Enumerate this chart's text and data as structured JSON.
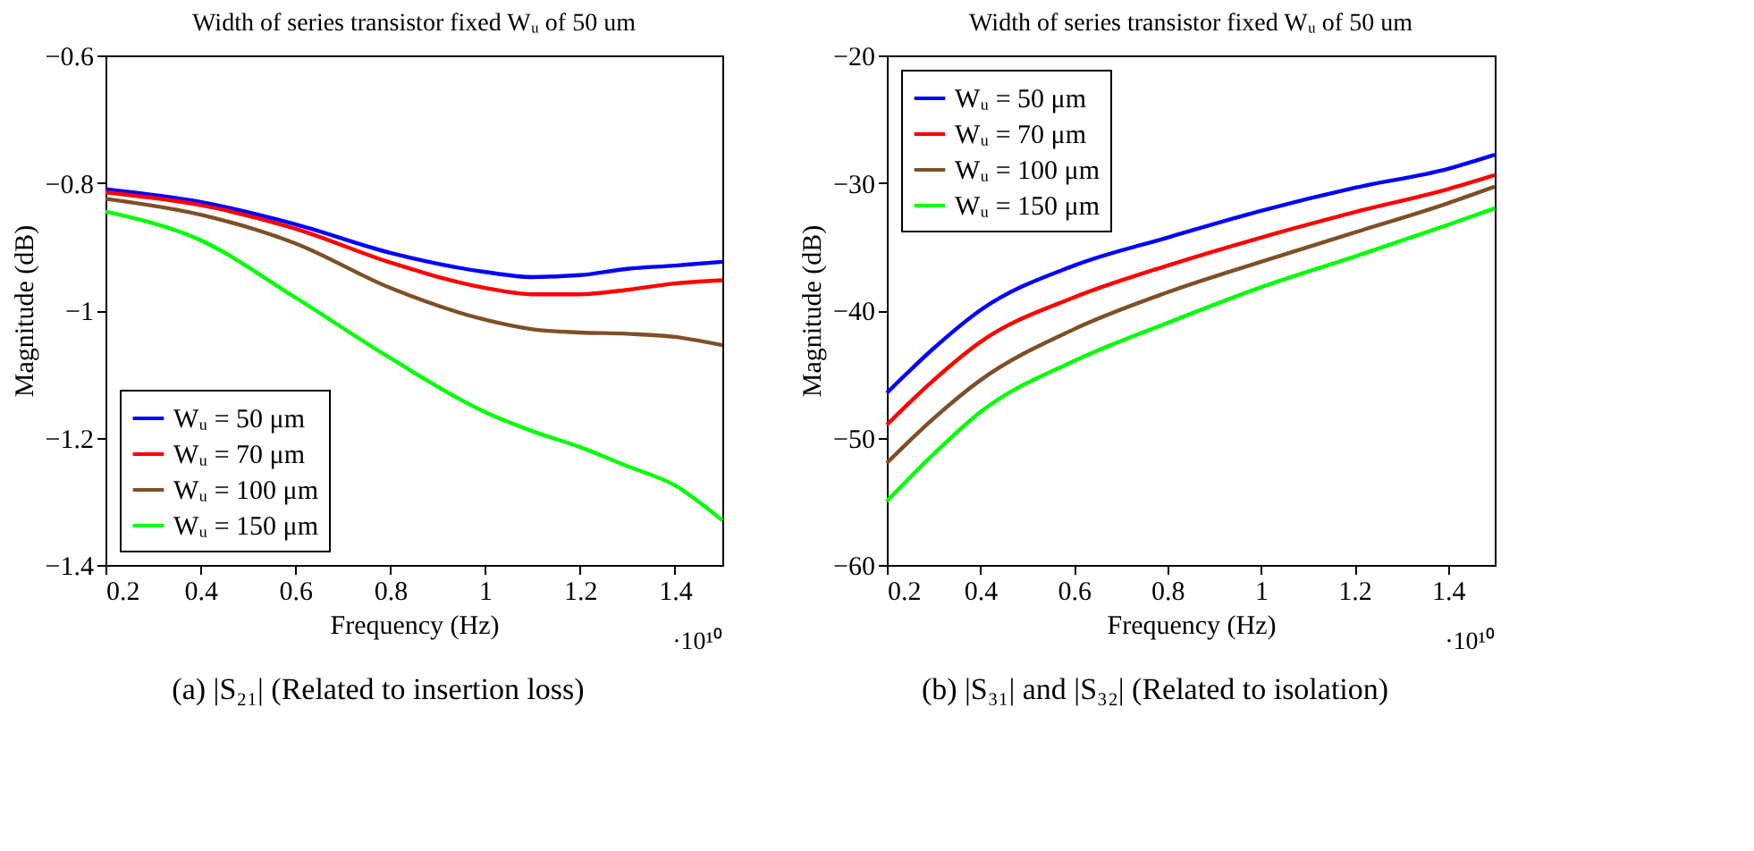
{
  "chart_data": [
    {
      "type": "line",
      "title": "Width of series transistor fixed Wᵤ of 50 um",
      "xlabel": "Frequency (Hz)",
      "ylabel": "Magnitude (dB)",
      "x": [
        0.2,
        0.4,
        0.6,
        0.8,
        1.0,
        1.1,
        1.2,
        1.3,
        1.4,
        1.5
      ],
      "series": [
        {
          "name": "Wᵤ = 50 μm",
          "color": "#0000ff",
          "values": [
            -0.81,
            -0.83,
            -0.865,
            -0.91,
            -0.94,
            -0.948,
            -0.945,
            -0.935,
            -0.93,
            -0.924
          ]
        },
        {
          "name": "Wᵤ = 70 μm",
          "color": "#ff0000",
          "values": [
            -0.815,
            -0.835,
            -0.872,
            -0.925,
            -0.965,
            -0.975,
            -0.975,
            -0.968,
            -0.958,
            -0.953
          ]
        },
        {
          "name": "Wᵤ = 100 μm",
          "color": "#7f4f26",
          "values": [
            -0.825,
            -0.85,
            -0.895,
            -0.965,
            -1.015,
            -1.03,
            -1.035,
            -1.037,
            -1.042,
            -1.055
          ]
        },
        {
          "name": "Wᵤ = 150 μm",
          "color": "#00ff00",
          "values": [
            -0.845,
            -0.89,
            -0.98,
            -1.075,
            -1.16,
            -1.19,
            -1.215,
            -1.245,
            -1.275,
            -1.33
          ]
        }
      ],
      "xlim": [
        0.2,
        1.5
      ],
      "ylim": [
        -1.4,
        -0.6
      ],
      "xticks": [
        0.2,
        0.4,
        0.6,
        0.8,
        1,
        1.2,
        1.4
      ],
      "yticks": [
        -1.4,
        -1.2,
        -1,
        -0.8,
        -0.6
      ],
      "legend": "bottom left",
      "grid": false,
      "annotations": [
        "·10¹⁰",
        "(a) |S₂₁| (Related to insertion loss)"
      ]
    },
    {
      "type": "line",
      "title": "Width of series transistor fixed Wᵤ of 50 um",
      "xlabel": "Frequency (Hz)",
      "ylabel": "Magnitude (dB)",
      "x": [
        0.2,
        0.3,
        0.4,
        0.6,
        0.8,
        1.0,
        1.2,
        1.4,
        1.5
      ],
      "series": [
        {
          "name": "Wᵤ = 50 μm",
          "color": "#0000ff",
          "values": [
            -46.5,
            -43,
            -40,
            -36.5,
            -34.3,
            -32.2,
            -30.4,
            -28.9,
            -27.8
          ]
        },
        {
          "name": "Wᵤ = 70 μm",
          "color": "#ff0000",
          "values": [
            -49,
            -45.5,
            -42.5,
            -39,
            -36.5,
            -34.3,
            -32.3,
            -30.5,
            -29.4
          ]
        },
        {
          "name": "Wᵤ = 100 μm",
          "color": "#7f4f26",
          "values": [
            -52,
            -48.5,
            -45.5,
            -41.5,
            -38.6,
            -36.2,
            -33.9,
            -31.6,
            -30.3
          ]
        },
        {
          "name": "Wᵤ = 150 μm",
          "color": "#00ff00",
          "values": [
            -55,
            -51.3,
            -48,
            -44,
            -41,
            -38.2,
            -35.8,
            -33.3,
            -32
          ]
        }
      ],
      "xlim": [
        0.2,
        1.5
      ],
      "ylim": [
        -60,
        -20
      ],
      "xticks": [
        0.2,
        0.4,
        0.6,
        0.8,
        1,
        1.2,
        1.4
      ],
      "yticks": [
        -60,
        -50,
        -40,
        -30,
        -20
      ],
      "legend": "top left",
      "grid": false,
      "annotations": [
        "·10¹⁰",
        "(b) |S₃₁| and |S₃₂| (Related to isolation)"
      ]
    }
  ]
}
